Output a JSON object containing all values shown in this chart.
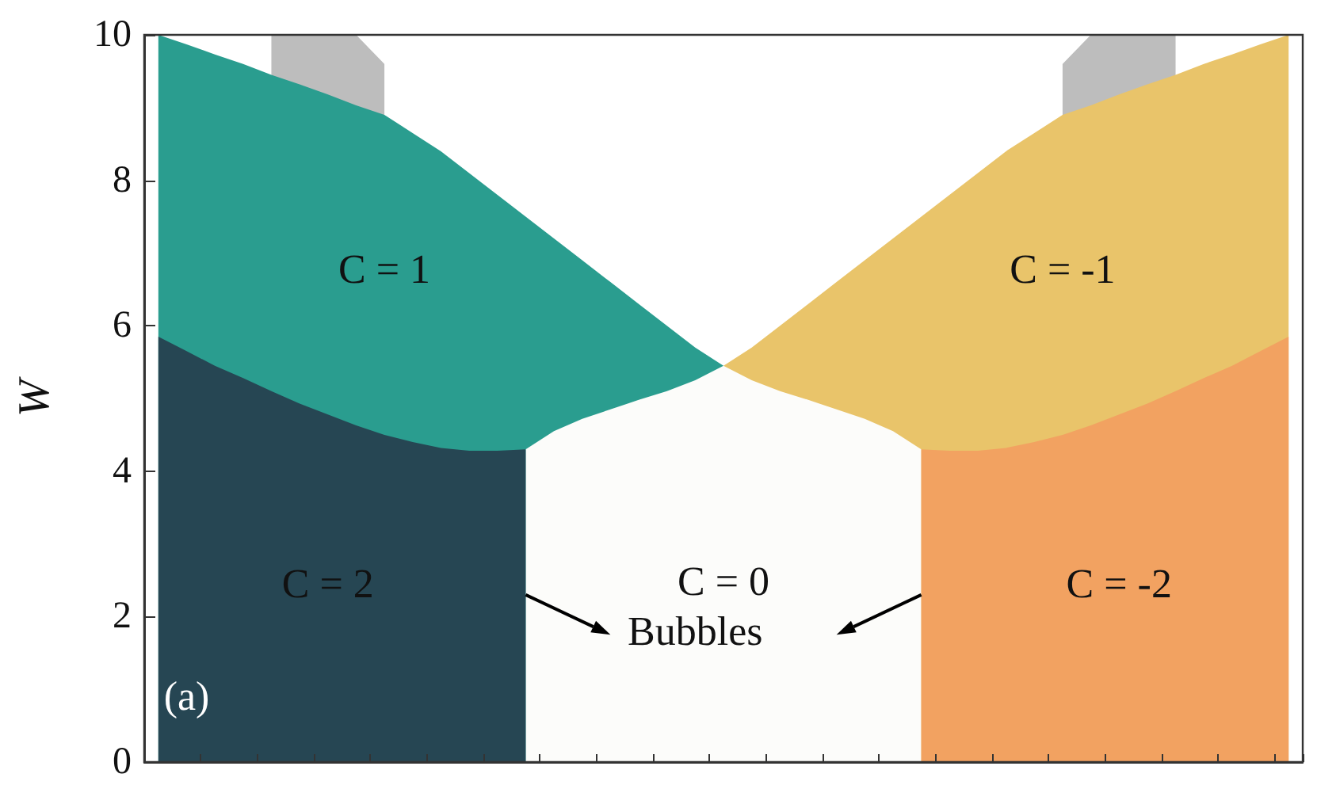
{
  "chart_data": {
    "type": "area",
    "ylabel": "W",
    "ylim": [
      0,
      10
    ],
    "yticks": [
      0,
      2,
      4,
      6,
      8,
      10
    ],
    "tick_labels": "y",
    "grid": false,
    "legend": false,
    "categories": [
      null,
      null,
      null,
      null,
      null,
      null,
      null,
      null,
      null,
      null,
      null,
      null,
      null,
      null,
      null,
      null,
      null,
      null,
      null,
      null,
      null,
      null,
      null,
      null,
      null,
      null,
      null,
      null,
      null,
      null,
      null,
      null,
      null,
      null,
      null,
      null,
      null,
      null,
      null,
      null,
      null
    ],
    "series": [
      {
        "color": "#bdbdbd",
        "values": [
          null,
          null,
          null,
          null,
          10,
          10,
          10,
          10,
          9.6,
          null,
          null,
          null,
          null,
          null,
          null,
          null,
          null,
          null,
          null,
          null,
          null,
          null,
          null,
          null,
          null,
          null,
          null,
          null,
          null,
          null,
          null,
          null,
          9.6,
          10,
          10,
          10,
          10,
          null,
          null,
          null,
          null
        ]
      },
      {
        "name": "C = 1",
        "color": "#2a9d8f",
        "values": [
          10,
          9.87,
          9.73,
          9.6,
          9.45,
          9.32,
          9.18,
          9.03,
          8.9,
          8.65,
          8.4,
          8.1,
          7.8,
          7.5,
          7.2,
          6.9,
          6.6,
          6.3,
          6.0,
          5.7,
          5.45,
          null,
          null,
          null,
          null,
          null,
          null,
          null,
          null,
          null,
          null,
          null,
          null,
          null,
          null,
          null,
          null,
          null,
          null,
          null,
          null
        ]
      },
      {
        "name": "C = -1",
        "color": "#e9c46a",
        "values": [
          null,
          null,
          null,
          null,
          null,
          null,
          null,
          null,
          null,
          null,
          null,
          null,
          null,
          null,
          null,
          null,
          null,
          null,
          null,
          null,
          5.45,
          5.7,
          6.0,
          6.3,
          6.6,
          6.9,
          7.2,
          7.5,
          7.8,
          8.1,
          8.4,
          8.65,
          8.9,
          9.03,
          9.18,
          9.32,
          9.45,
          9.6,
          9.73,
          9.87,
          10
        ]
      },
      {
        "name": "C = 0",
        "color": "#fcfcfa",
        "values": [
          null,
          null,
          null,
          null,
          null,
          null,
          null,
          null,
          null,
          null,
          null,
          null,
          null,
          4.3,
          4.55,
          4.72,
          4.85,
          4.98,
          5.1,
          5.25,
          5.45,
          5.25,
          5.1,
          4.98,
          4.85,
          4.72,
          4.55,
          4.3,
          null,
          null,
          null,
          null,
          null,
          null,
          null,
          null,
          null,
          null,
          null,
          null,
          null
        ]
      },
      {
        "name": "C = 2",
        "color": "#264653",
        "values": [
          5.85,
          5.65,
          5.45,
          5.28,
          5.1,
          4.93,
          4.78,
          4.63,
          4.5,
          4.4,
          4.32,
          4.28,
          4.28,
          4.3,
          null,
          null,
          null,
          null,
          null,
          null,
          null,
          null,
          null,
          null,
          null,
          null,
          null,
          null,
          null,
          null,
          null,
          null,
          null,
          null,
          null,
          null,
          null,
          null,
          null,
          null,
          null
        ]
      },
      {
        "name": "C = -2",
        "color": "#f2a261",
        "values": [
          null,
          null,
          null,
          null,
          null,
          null,
          null,
          null,
          null,
          null,
          null,
          null,
          null,
          null,
          null,
          null,
          null,
          null,
          null,
          null,
          null,
          null,
          null,
          null,
          null,
          null,
          null,
          4.3,
          4.28,
          4.28,
          4.32,
          4.4,
          4.5,
          4.63,
          4.78,
          4.93,
          5.1,
          5.28,
          5.45,
          5.65,
          5.85
        ]
      }
    ],
    "annotations": [
      "Bubbles",
      "(a)"
    ]
  }
}
